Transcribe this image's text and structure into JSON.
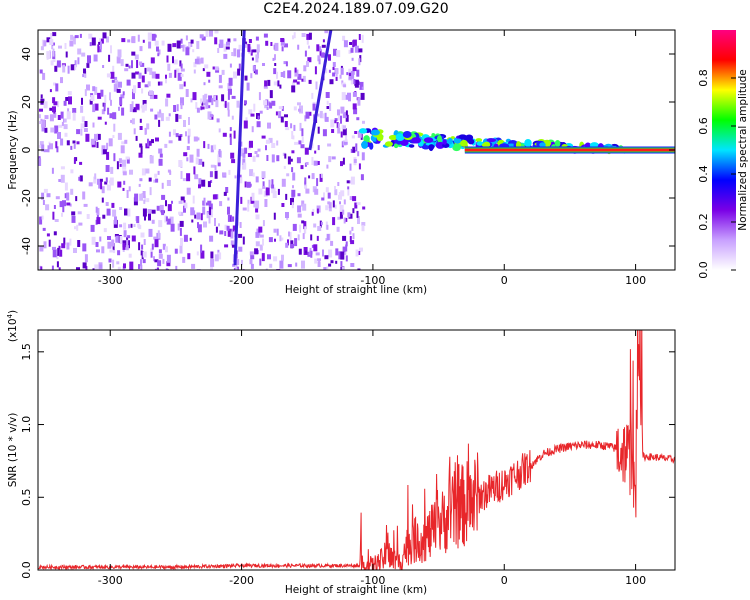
{
  "title": "C2E4.2024.189.07.09.G20",
  "chart_data": [
    {
      "type": "heatmap",
      "xlabel": "Height of straight line (km)",
      "ylabel": "Frequency (Hz)",
      "xlim": [
        -355,
        130
      ],
      "ylim": [
        -50,
        50
      ],
      "xticks": [
        -300,
        -200,
        -100,
        0,
        100
      ],
      "yticks": [
        -40,
        -20,
        0,
        20,
        40
      ],
      "colorbar": {
        "label": "Normalized spectral amplitude",
        "range": [
          0.0,
          1.0
        ],
        "ticks": [
          "0.0",
          "0.2",
          "0.4",
          "0.6",
          "0.8"
        ],
        "colors": [
          "#ffffff",
          "#c8a0ff",
          "#7a00e6",
          "#0000ff",
          "#00e5ff",
          "#00ff00",
          "#ffff00",
          "#ff0000",
          "#ff0080"
        ]
      },
      "features": [
        {
          "kind": "broadband-noise",
          "x_range": [
            -355,
            -108
          ],
          "y_range": [
            -50,
            50
          ]
        },
        {
          "kind": "tail-line",
          "x": [
            -110,
            100
          ],
          "y": [
            5,
            0
          ]
        },
        {
          "kind": "steady-line",
          "x_range": [
            -30,
            130
          ],
          "y": 0
        },
        {
          "kind": "streak",
          "x": [
            -205,
            -198
          ],
          "y": [
            -48,
            50
          ]
        },
        {
          "kind": "streak",
          "x": [
            -148,
            -132
          ],
          "y": [
            0,
            50
          ]
        }
      ]
    },
    {
      "type": "line",
      "xlabel": "Height of straight line (km)",
      "ylabel": "SNR (10 * v/v)",
      "yunit": "(x10^4)",
      "xlim": [
        -355,
        130
      ],
      "ylim": [
        0.0,
        1.65
      ],
      "xticks": [
        -300,
        -200,
        -100,
        0,
        100
      ],
      "yticks": [
        0.0,
        0.5,
        1.0,
        1.5
      ],
      "color": "#e8262a",
      "series": [
        {
          "x": [
            -355,
            -300,
            -250,
            -200,
            -150,
            -110,
            -100,
            -95,
            -90,
            -80,
            -75,
            -70,
            -60,
            -50,
            -40,
            -30,
            -20,
            -10,
            0,
            10,
            20,
            30,
            40,
            50,
            60,
            70,
            80,
            90,
            95,
            100,
            102,
            105,
            110,
            120,
            130
          ],
          "y": [
            0.02,
            0.02,
            0.02,
            0.03,
            0.03,
            0.03,
            0.03,
            0.05,
            0.1,
            0.05,
            0.15,
            0.2,
            0.22,
            0.3,
            0.4,
            0.45,
            0.5,
            0.55,
            0.6,
            0.66,
            0.72,
            0.8,
            0.83,
            0.85,
            0.86,
            0.86,
            0.85,
            0.82,
            0.8,
            0.5,
            1.55,
            0.78,
            0.78,
            0.77,
            0.76
          ]
        }
      ]
    }
  ]
}
